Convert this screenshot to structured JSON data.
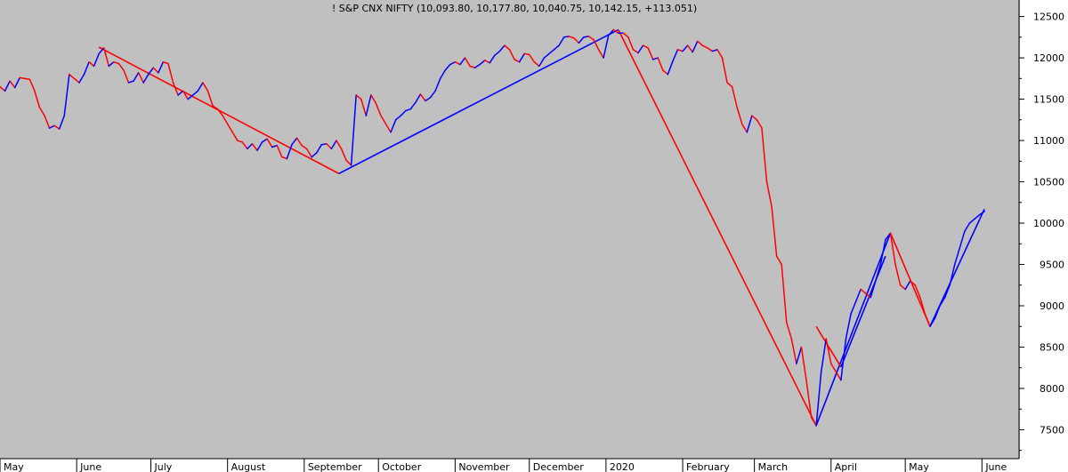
{
  "chart_data": {
    "type": "line",
    "title": "! S&P CNX NIFTY (10,093.80, 10,177.80, 10,040.75, 10,142.15, +113.051)",
    "y_ticks": [
      7500,
      8000,
      8500,
      9000,
      9500,
      10000,
      10500,
      11000,
      11500,
      12000,
      12500
    ],
    "ylim": [
      7150,
      12700
    ],
    "x_ticks": [
      {
        "label": "May",
        "day": 0
      },
      {
        "label": "June",
        "day": 31
      },
      {
        "label": "July",
        "day": 61
      },
      {
        "label": "August",
        "day": 92
      },
      {
        "label": "September",
        "day": 123
      },
      {
        "label": "October",
        "day": 153
      },
      {
        "label": "November",
        "day": 184
      },
      {
        "label": "December",
        "day": 214
      },
      {
        "label": "2020",
        "day": 245
      },
      {
        "label": "February",
        "day": 276
      },
      {
        "label": "March",
        "day": 305
      },
      {
        "label": "April",
        "day": 336
      },
      {
        "label": "May",
        "day": 366
      },
      {
        "label": "June",
        "day": 397
      }
    ],
    "xlim": [
      0,
      412
    ],
    "series": [
      {
        "color_up": "#0000ff",
        "color_down": "#ff0000",
        "points": [
          [
            0,
            11650
          ],
          [
            2,
            11600
          ],
          [
            4,
            11720
          ],
          [
            6,
            11640
          ],
          [
            8,
            11760
          ],
          [
            10,
            11750
          ],
          [
            12,
            11740
          ],
          [
            14,
            11600
          ],
          [
            16,
            11400
          ],
          [
            18,
            11300
          ],
          [
            20,
            11150
          ],
          [
            22,
            11180
          ],
          [
            24,
            11140
          ],
          [
            26,
            11300
          ],
          [
            28,
            11800
          ],
          [
            30,
            11750
          ],
          [
            32,
            11700
          ],
          [
            34,
            11800
          ],
          [
            36,
            11950
          ],
          [
            38,
            11900
          ],
          [
            40,
            12050
          ],
          [
            42,
            12120
          ],
          [
            44,
            11900
          ],
          [
            46,
            11950
          ],
          [
            48,
            11930
          ],
          [
            50,
            11850
          ],
          [
            52,
            11700
          ],
          [
            54,
            11720
          ],
          [
            56,
            11820
          ],
          [
            58,
            11700
          ],
          [
            60,
            11800
          ],
          [
            62,
            11880
          ],
          [
            64,
            11820
          ],
          [
            66,
            11950
          ],
          [
            68,
            11930
          ],
          [
            70,
            11700
          ],
          [
            72,
            11550
          ],
          [
            74,
            11600
          ],
          [
            76,
            11500
          ],
          [
            78,
            11550
          ],
          [
            80,
            11600
          ],
          [
            82,
            11700
          ],
          [
            84,
            11600
          ],
          [
            86,
            11420
          ],
          [
            88,
            11380
          ],
          [
            90,
            11300
          ],
          [
            92,
            11200
          ],
          [
            94,
            11100
          ],
          [
            96,
            11000
          ],
          [
            98,
            10980
          ],
          [
            100,
            10900
          ],
          [
            102,
            10960
          ],
          [
            104,
            10880
          ],
          [
            106,
            10980
          ],
          [
            108,
            11020
          ],
          [
            110,
            10920
          ],
          [
            112,
            10940
          ],
          [
            114,
            10800
          ],
          [
            116,
            10780
          ],
          [
            118,
            10950
          ],
          [
            120,
            11030
          ],
          [
            122,
            10940
          ],
          [
            124,
            10900
          ],
          [
            126,
            10800
          ],
          [
            128,
            10850
          ],
          [
            130,
            10950
          ],
          [
            132,
            10960
          ],
          [
            134,
            10900
          ],
          [
            136,
            11000
          ],
          [
            138,
            10900
          ],
          [
            140,
            10760
          ],
          [
            142,
            10700
          ],
          [
            144,
            11550
          ],
          [
            146,
            11500
          ],
          [
            148,
            11300
          ],
          [
            150,
            11550
          ],
          [
            152,
            11450
          ],
          [
            154,
            11300
          ],
          [
            156,
            11200
          ],
          [
            158,
            11100
          ],
          [
            160,
            11250
          ],
          [
            162,
            11300
          ],
          [
            164,
            11360
          ],
          [
            166,
            11380
          ],
          [
            168,
            11460
          ],
          [
            170,
            11560
          ],
          [
            172,
            11480
          ],
          [
            174,
            11520
          ],
          [
            176,
            11600
          ],
          [
            178,
            11750
          ],
          [
            180,
            11850
          ],
          [
            182,
            11920
          ],
          [
            184,
            11950
          ],
          [
            186,
            11920
          ],
          [
            188,
            12000
          ],
          [
            190,
            11900
          ],
          [
            192,
            11880
          ],
          [
            194,
            11920
          ],
          [
            196,
            11970
          ],
          [
            198,
            11940
          ],
          [
            200,
            12030
          ],
          [
            202,
            12080
          ],
          [
            204,
            12150
          ],
          [
            206,
            12100
          ],
          [
            208,
            11980
          ],
          [
            210,
            11950
          ],
          [
            212,
            12050
          ],
          [
            214,
            12040
          ],
          [
            216,
            11950
          ],
          [
            218,
            11900
          ],
          [
            220,
            12000
          ],
          [
            222,
            12050
          ],
          [
            224,
            12100
          ],
          [
            226,
            12150
          ],
          [
            228,
            12250
          ],
          [
            230,
            12260
          ],
          [
            232,
            12240
          ],
          [
            234,
            12180
          ],
          [
            236,
            12250
          ],
          [
            238,
            12260
          ],
          [
            240,
            12220
          ],
          [
            242,
            12100
          ],
          [
            244,
            12000
          ],
          [
            246,
            12270
          ],
          [
            248,
            12340
          ],
          [
            250,
            12300
          ],
          [
            252,
            12300
          ],
          [
            254,
            12250
          ],
          [
            256,
            12100
          ],
          [
            258,
            12060
          ],
          [
            260,
            12150
          ],
          [
            262,
            12120
          ],
          [
            264,
            11980
          ],
          [
            266,
            12000
          ],
          [
            268,
            11850
          ],
          [
            270,
            11800
          ],
          [
            272,
            11960
          ],
          [
            274,
            12100
          ],
          [
            276,
            12080
          ],
          [
            278,
            12150
          ],
          [
            280,
            12070
          ],
          [
            282,
            12200
          ],
          [
            284,
            12150
          ],
          [
            286,
            12120
          ],
          [
            288,
            12080
          ],
          [
            290,
            12100
          ],
          [
            292,
            12000
          ],
          [
            294,
            11700
          ],
          [
            296,
            11650
          ],
          [
            298,
            11400
          ],
          [
            300,
            11200
          ],
          [
            302,
            11100
          ],
          [
            304,
            11300
          ],
          [
            306,
            11250
          ],
          [
            308,
            11150
          ],
          [
            310,
            10500
          ],
          [
            312,
            10200
          ],
          [
            314,
            9600
          ],
          [
            316,
            9500
          ],
          [
            318,
            8800
          ],
          [
            320,
            8600
          ],
          [
            322,
            8300
          ],
          [
            324,
            8500
          ],
          [
            326,
            8100
          ],
          [
            328,
            7650
          ],
          [
            330,
            7550
          ],
          [
            332,
            8200
          ],
          [
            334,
            8600
          ],
          [
            336,
            8300
          ],
          [
            338,
            8200
          ],
          [
            340,
            8100
          ],
          [
            342,
            8600
          ],
          [
            344,
            8900
          ],
          [
            346,
            9050
          ],
          [
            348,
            9200
          ],
          [
            350,
            9150
          ],
          [
            352,
            9100
          ],
          [
            354,
            9300
          ],
          [
            356,
            9500
          ],
          [
            358,
            9800
          ],
          [
            360,
            9880
          ],
          [
            362,
            9500
          ],
          [
            364,
            9250
          ],
          [
            366,
            9200
          ],
          [
            368,
            9300
          ],
          [
            370,
            9250
          ],
          [
            372,
            9100
          ],
          [
            374,
            8900
          ],
          [
            376,
            8750
          ],
          [
            378,
            8850
          ],
          [
            380,
            9000
          ],
          [
            382,
            9100
          ],
          [
            384,
            9250
          ],
          [
            386,
            9500
          ],
          [
            388,
            9700
          ],
          [
            390,
            9900
          ],
          [
            392,
            10000
          ],
          [
            394,
            10050
          ],
          [
            396,
            10100
          ],
          [
            398,
            10142
          ]
        ]
      }
    ],
    "trendlines": [
      {
        "color": "#ff0000",
        "from": [
          40,
          12130
        ],
        "to": [
          137,
          10600
        ]
      },
      {
        "color": "#0000ff",
        "from": [
          137,
          10600
        ],
        "to": [
          250,
          12340
        ]
      },
      {
        "color": "#ff0000",
        "from": [
          250,
          12340
        ],
        "to": [
          330,
          7550
        ]
      },
      {
        "color": "#0000ff",
        "from": [
          330,
          7550
        ],
        "to": [
          360,
          9880
        ]
      },
      {
        "color": "#ff0000",
        "from": [
          360,
          9880
        ],
        "to": [
          376,
          8750
        ]
      },
      {
        "color": "#0000ff",
        "from": [
          376,
          8750
        ],
        "to": [
          398,
          10170
        ]
      },
      {
        "color": "#ff0000",
        "from": [
          330,
          8750
        ],
        "to": [
          340,
          8260
        ]
      },
      {
        "color": "#0000ff",
        "from": [
          340,
          8260
        ],
        "to": [
          358,
          9600
        ]
      }
    ]
  }
}
